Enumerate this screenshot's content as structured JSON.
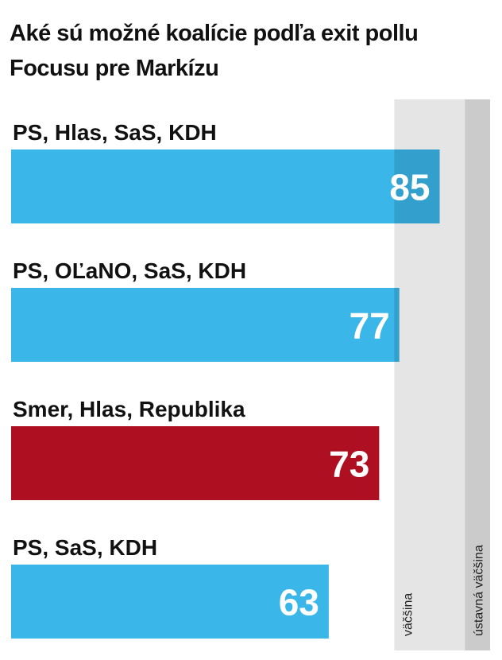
{
  "chart_data": {
    "type": "bar",
    "orientation": "horizontal",
    "title": "Aké sú možné koalície podľa exit pollu Focusu pre Markízu",
    "categories": [
      "PS, Hlas, SaS, KDH",
      "PS, OĽaNO, SaS, KDH",
      "Smer, Hlas, Republika",
      "PS, SaS, KDH"
    ],
    "values": [
      85,
      77,
      73,
      63
    ],
    "colors": [
      "#3bb6e9",
      "#3bb6e9",
      "#ae1022",
      "#3bb6e9"
    ],
    "xlim": [
      0,
      95
    ],
    "thresholds": [
      {
        "value": 76,
        "label": "väčšina",
        "color": "#e5e5e5"
      },
      {
        "value": 90,
        "label": "ústavná väčšina",
        "color": "#cbcbcb"
      }
    ]
  }
}
